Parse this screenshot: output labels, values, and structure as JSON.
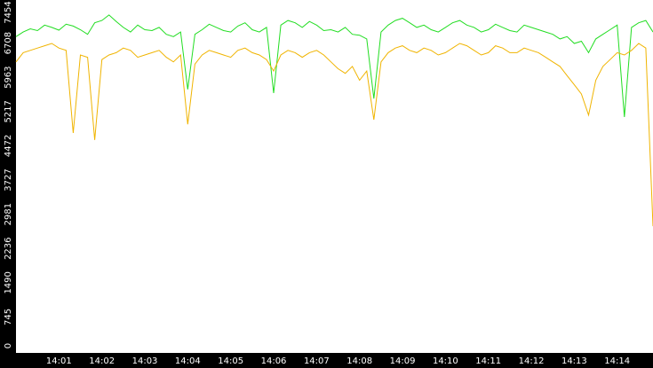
{
  "chart_data": {
    "type": "line",
    "categories": [
      null,
      null,
      null,
      null,
      null,
      null,
      "14:01",
      null,
      null,
      null,
      null,
      null,
      "14:02",
      null,
      null,
      null,
      null,
      null,
      "14:03",
      null,
      null,
      null,
      null,
      null,
      "14:04",
      null,
      null,
      null,
      null,
      null,
      "14:05",
      null,
      null,
      null,
      null,
      null,
      "14:06",
      null,
      null,
      null,
      null,
      null,
      "14:07",
      null,
      null,
      null,
      null,
      null,
      "14:08",
      null,
      null,
      null,
      null,
      null,
      "14:09",
      null,
      null,
      null,
      null,
      null,
      "14:10",
      null,
      null,
      null,
      null,
      null,
      "14:11",
      null,
      null,
      null,
      null,
      null,
      "14:12",
      null,
      null,
      null,
      null,
      null,
      "14:13",
      null,
      null,
      null,
      null,
      null,
      "14:14",
      null,
      null,
      null,
      null,
      null
    ],
    "series": [
      {
        "color": "#22dd22",
        "values": [
          6850,
          6950,
          7020,
          6980,
          7100,
          7050,
          6990,
          7120,
          7080,
          7000,
          6900,
          7150,
          7200,
          7320,
          7180,
          7050,
          6950,
          7100,
          7000,
          6980,
          7050,
          6900,
          6850,
          6950,
          5700,
          6900,
          7000,
          7120,
          7050,
          6980,
          6950,
          7080,
          7150,
          7000,
          6950,
          7050,
          5620,
          7100,
          7200,
          7150,
          7050,
          7180,
          7100,
          6980,
          7000,
          6950,
          7050,
          6900,
          6880,
          6800,
          5500,
          6950,
          7100,
          7200,
          7250,
          7150,
          7050,
          7100,
          7000,
          6950,
          7050,
          7150,
          7200,
          7100,
          7050,
          6950,
          7000,
          7120,
          7050,
          6980,
          6950,
          7100,
          7050,
          7000,
          6950,
          6900,
          6800,
          6850,
          6700,
          6750,
          6500,
          6800,
          6900,
          7000,
          7100,
          5100,
          7050,
          7150,
          7200,
          6950
        ]
      },
      {
        "color": "#f0b400",
        "values": [
          6300,
          6500,
          6550,
          6600,
          6650,
          6700,
          6600,
          6550,
          4750,
          6450,
          6400,
          4600,
          6350,
          6450,
          6500,
          6600,
          6550,
          6400,
          6450,
          6500,
          6550,
          6400,
          6300,
          6450,
          4940,
          6250,
          6450,
          6550,
          6500,
          6450,
          6400,
          6550,
          6600,
          6500,
          6450,
          6350,
          6100,
          6450,
          6550,
          6500,
          6400,
          6500,
          6550,
          6450,
          6300,
          6150,
          6050,
          6200,
          5900,
          6100,
          5040,
          6300,
          6500,
          6600,
          6650,
          6550,
          6500,
          6600,
          6550,
          6450,
          6500,
          6600,
          6700,
          6650,
          6550,
          6450,
          6500,
          6650,
          6600,
          6500,
          6500,
          6600,
          6550,
          6500,
          6400,
          6300,
          6200,
          6000,
          5800,
          5600,
          5140,
          5900,
          6200,
          6350,
          6500,
          6450,
          6550,
          6700,
          6600,
          2720
        ]
      }
    ],
    "ylim": [
      0,
      7647
    ],
    "yticks": [
      0,
      745,
      1490,
      2236,
      2981,
      3727,
      4472,
      5217,
      5963,
      6708,
      7454
    ],
    "grid": false
  }
}
